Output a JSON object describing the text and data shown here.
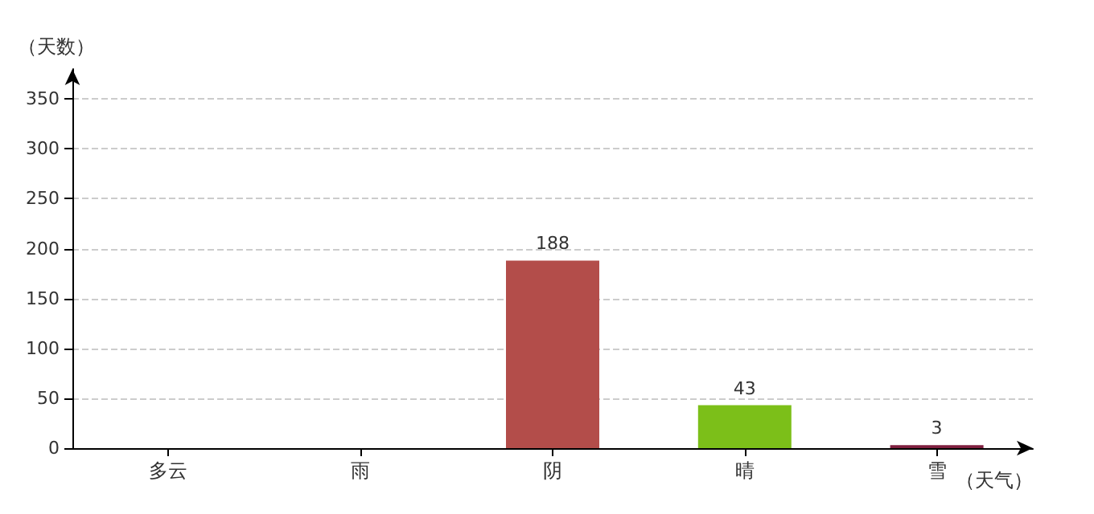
{
  "chart_data": {
    "type": "bar",
    "xlabel": "（天气）",
    "ylabel": "（天数）",
    "categories": [
      "多云",
      "雨",
      "阴",
      "晴",
      "雪"
    ],
    "values": [
      null,
      null,
      188,
      43,
      3
    ],
    "colors": [
      "#d4cb1c",
      "#ccff66",
      "#b34d4a",
      "#7cbf19",
      "#7f1f3f"
    ],
    "ylim": [
      0,
      380
    ],
    "yticks": [
      0,
      50,
      100,
      150,
      200,
      250,
      300,
      350
    ],
    "grid": "y",
    "data_labels": true
  }
}
